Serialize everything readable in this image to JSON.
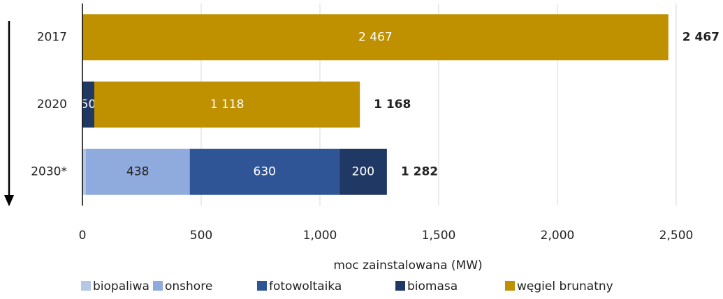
{
  "chart_data": {
    "type": "bar",
    "orientation": "horizontal",
    "stacked": true,
    "categories": [
      "2017",
      "2020",
      "2030*"
    ],
    "series": [
      {
        "name": "biopaliwa",
        "color": "#b4c7e7",
        "values": [
          null,
          null,
          14
        ],
        "value_labels": [
          null,
          null,
          null
        ]
      },
      {
        "name": "onshore",
        "color": "#8faadc",
        "values": [
          null,
          null,
          438
        ],
        "value_labels": [
          null,
          null,
          "438"
        ]
      },
      {
        "name": "fotowoltaika",
        "color": "#2f5597",
        "values": [
          null,
          null,
          630
        ],
        "value_labels": [
          null,
          null,
          "630"
        ]
      },
      {
        "name": "biomasa",
        "color": "#203864",
        "values": [
          null,
          50,
          200
        ],
        "value_labels": [
          null,
          "50",
          "200"
        ]
      },
      {
        "name": "węgiel brunatny",
        "color": "#bf9000",
        "values": [
          2467,
          1118,
          null
        ],
        "value_labels": [
          "2 467",
          "1 118",
          null
        ]
      }
    ],
    "totals": [
      2467,
      1168,
      1282
    ],
    "total_labels": [
      "2 467",
      "1 168",
      "1 282"
    ],
    "xlabel": "moc zainstalowana (MW)",
    "xlim": [
      0,
      2500
    ],
    "xticks": [
      0,
      500,
      {
        "value": 1000,
        "label": "1,000"
      },
      {
        "value": 1500,
        "label": "1,500"
      },
      {
        "value": 2000,
        "label": "2,000"
      },
      {
        "value": 2500,
        "label": "2,500"
      }
    ],
    "grid": true,
    "legend": "bottom"
  }
}
